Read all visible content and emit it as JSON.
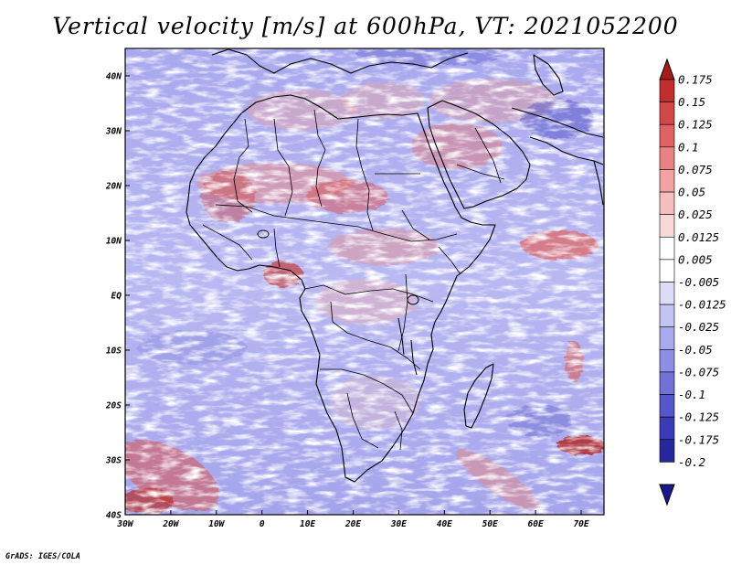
{
  "title": "Vertical velocity [m/s] at 600hPa, VT: 2021052200",
  "credit": "GrADS: IGES/COLA",
  "map": {
    "variable": "Vertical velocity",
    "units": "m/s",
    "level": "600hPa",
    "valid_time": "2021052200",
    "lon_range": [
      -30,
      75
    ],
    "lat_range": [
      -40,
      45
    ],
    "lon_ticks": [
      "30W",
      "20W",
      "10W",
      "0",
      "10E",
      "20E",
      "30E",
      "40E",
      "50E",
      "60E",
      "70E"
    ],
    "lat_ticks": [
      "40N",
      "30N",
      "20N",
      "10N",
      "EQ",
      "10S",
      "20S",
      "30S",
      "40S"
    ]
  },
  "colorbar": {
    "labels": [
      "0.175",
      "0.15",
      "0.125",
      "0.1",
      "0.075",
      "0.05",
      "0.025",
      "0.0125",
      "0.005",
      "-0.005",
      "-0.0125",
      "-0.025",
      "-0.05",
      "-0.075",
      "-0.1",
      "-0.125",
      "-0.175",
      "-0.2"
    ],
    "colors": [
      "#a61c1c",
      "#c02e2e",
      "#d24747",
      "#df6363",
      "#e98383",
      "#f1a2a2",
      "#f6bfbf",
      "#fad8d8",
      "#ffffff",
      "#ffffff",
      "#dcdcf8",
      "#c4c4f2",
      "#a9a9ec",
      "#8e8ee4",
      "#7171d9",
      "#5656cc",
      "#3b3bb7",
      "#28289e",
      "#18188a"
    ]
  }
}
